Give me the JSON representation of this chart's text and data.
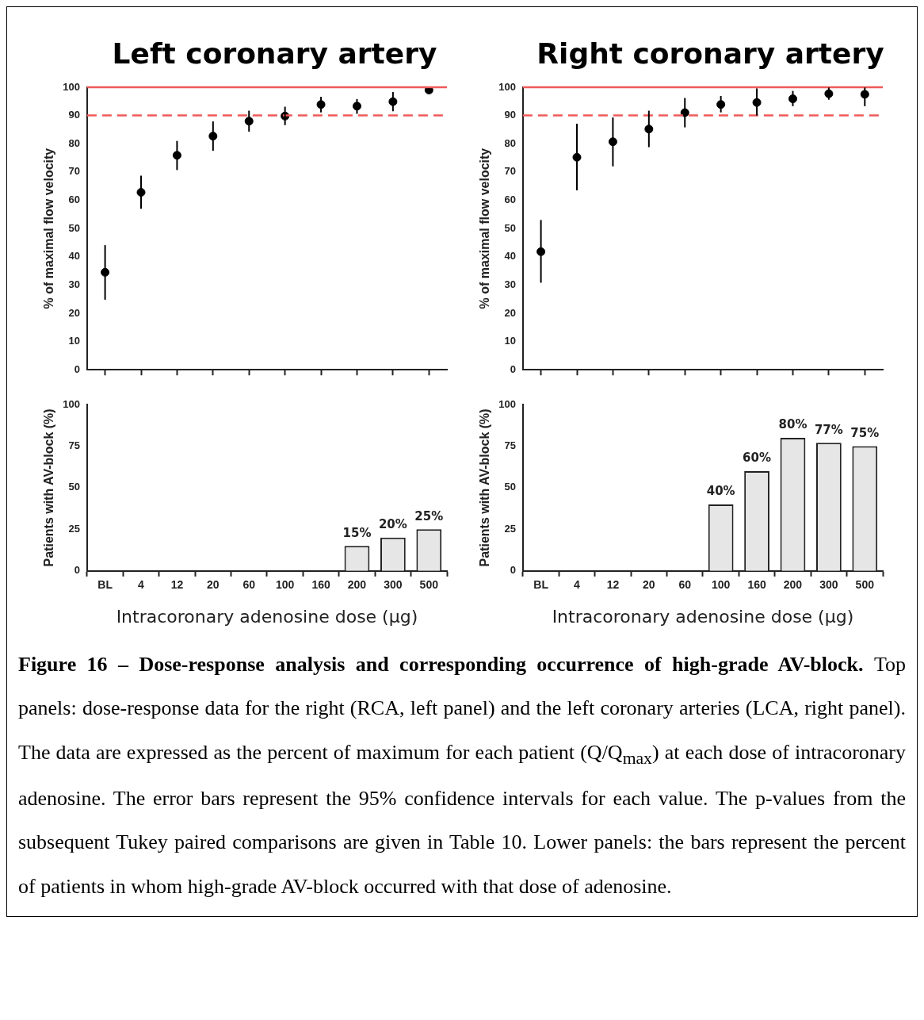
{
  "chart_data": [
    {
      "type": "scatter",
      "title": "Left coronary artery",
      "ylabel": "% of maximal flow velocity",
      "categories": [
        null,
        null,
        null,
        null,
        null,
        null,
        null,
        null,
        null,
        null
      ],
      "color": "#000000",
      "marker": "circle",
      "values": [
        34.5,
        62.8,
        75.9,
        82.7,
        88.0,
        89.8,
        93.9,
        93.3,
        94.9,
        99.0
      ],
      "errors": [
        [
          24.8,
          44.1
        ],
        [
          57.0,
          68.7
        ],
        [
          70.7,
          81.0
        ],
        [
          77.5,
          87.9
        ],
        [
          84.3,
          91.7
        ],
        [
          86.6,
          93.1
        ],
        [
          91.1,
          96.6
        ],
        [
          90.6,
          95.8
        ],
        [
          91.5,
          98.3
        ],
        [
          97.9,
          99.6
        ]
      ],
      "ylim": [
        0,
        100
      ],
      "yticks": [
        0,
        10,
        20,
        30,
        40,
        50,
        60,
        70,
        80,
        90,
        100
      ],
      "ref_lines": [
        {
          "axis": "y",
          "value": 100,
          "color": "#f05a5a",
          "line_style": "solid"
        },
        {
          "axis": "y",
          "value": 90,
          "color": "#f05a5a",
          "line_style": "dashed"
        }
      ]
    },
    {
      "type": "scatter",
      "title": "Right coronary artery",
      "ylabel": "% of maximal flow velocity",
      "categories": [
        null,
        null,
        null,
        null,
        null,
        null,
        null,
        null,
        null,
        null
      ],
      "color": "#000000",
      "marker": "circle",
      "values": [
        41.8,
        75.2,
        80.7,
        85.2,
        91.0,
        93.9,
        94.6,
        95.9,
        97.7,
        97.5
      ],
      "errors": [
        [
          30.8,
          53.0
        ],
        [
          63.5,
          87.1
        ],
        [
          72.0,
          89.3
        ],
        [
          78.8,
          91.7
        ],
        [
          85.8,
          96.2
        ],
        [
          91.1,
          96.9
        ],
        [
          90.0,
          99.6
        ],
        [
          93.3,
          98.7
        ],
        [
          95.6,
          99.9
        ],
        [
          93.3,
          99.9
        ]
      ],
      "ylim": [
        0,
        100
      ],
      "yticks": [
        0,
        10,
        20,
        30,
        40,
        50,
        60,
        70,
        80,
        90,
        100
      ],
      "ref_lines": [
        {
          "axis": "y",
          "value": 100,
          "color": "#f05a5a",
          "line_style": "solid"
        },
        {
          "axis": "y",
          "value": 90,
          "color": "#f05a5a",
          "line_style": "dashed"
        }
      ]
    },
    {
      "type": "bar",
      "xlabel": "Intracoronary adenosine dose (µg)",
      "ylabel": "Patients with AV-block (%)",
      "categories": [
        "BL",
        "4",
        "12",
        "20",
        "60",
        "100",
        "160",
        "200",
        "300",
        "500"
      ],
      "color": "#e6e6e6",
      "values": [
        0,
        0,
        0,
        0,
        0,
        0,
        0,
        15,
        20,
        25
      ],
      "value_labels": [
        null,
        null,
        null,
        null,
        null,
        null,
        null,
        "15%",
        "20%",
        "25%"
      ],
      "ylim": [
        0,
        100
      ],
      "yticks": [
        0,
        25,
        50,
        75,
        100
      ]
    },
    {
      "type": "bar",
      "xlabel": "Intracoronary adenosine dose (µg)",
      "ylabel": "Patients with AV-block (%)",
      "categories": [
        "BL",
        "4",
        "12",
        "20",
        "60",
        "100",
        "160",
        "200",
        "300",
        "500"
      ],
      "color": "#e6e6e6",
      "values": [
        0,
        0,
        0,
        0,
        0,
        40,
        60,
        80,
        77,
        75
      ],
      "value_labels": [
        null,
        null,
        null,
        null,
        null,
        "40%",
        "60%",
        "80%",
        "77%",
        "75%"
      ],
      "ylim": [
        0,
        100
      ],
      "yticks": [
        0,
        25,
        50,
        75,
        100
      ]
    },
    {
      "type": "other",
      "annotations": [
        "Figure 16 – Dose-response analysis and corresponding occurrence of high-grade AV-block.",
        "Top panels: dose-response data for the right (RCA, left panel) and the left coronary arteries (LCA, right panel). The data are expressed as the percent of maximum for each patient (Q/Q$_{max}$) at each dose of intracoronary adenosine. The error bars represent the 95% confidence intervals for each value. The p-values from the subsequent Tukey paired comparisons are given in Table 10.",
        "Lower panels: the bars represent the percent of patients in whom high-grade AV-block occurred with that dose of adenosine."
      ]
    }
  ]
}
